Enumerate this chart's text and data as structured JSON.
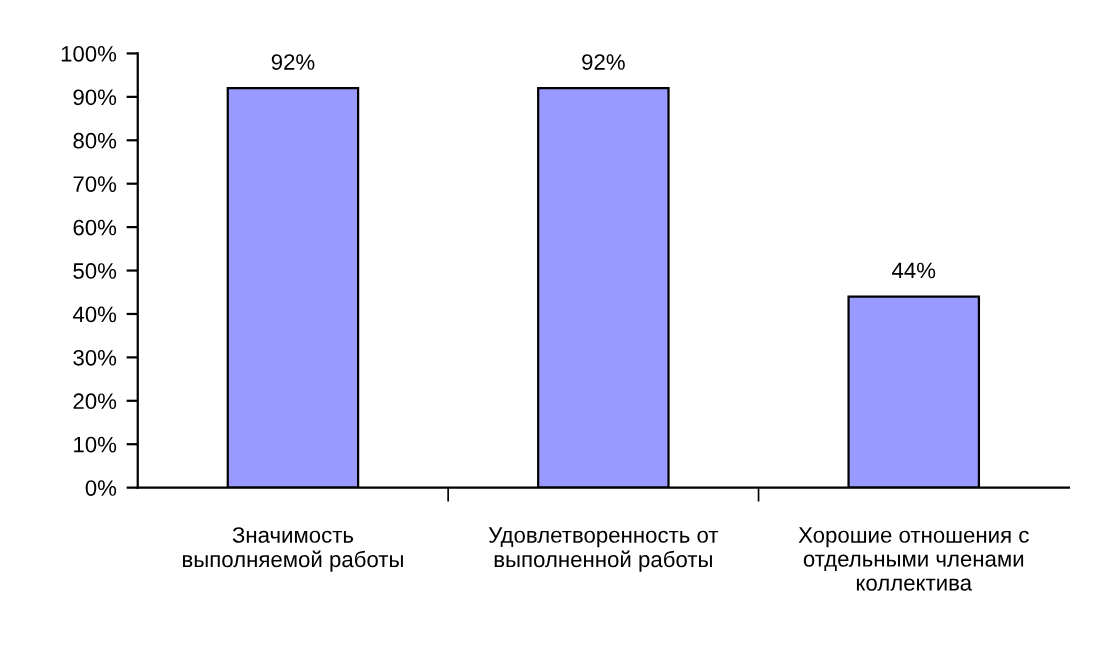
{
  "chart_data": {
    "type": "bar",
    "categories": [
      "Значимость\nвыполняемой работы",
      "Удовлетворенность от\nвыполненной работы",
      "Хорошие отношения с\nотдельными членами\nколлектива"
    ],
    "series": [
      {
        "color": "#9999ff",
        "values": [
          92,
          92,
          44
        ]
      }
    ],
    "value_labels": [
      "92%",
      "92%",
      "44%"
    ],
    "ylim": [
      0,
      100
    ],
    "yticks": [
      {
        "value": 0,
        "label": "0%"
      },
      {
        "value": 10,
        "label": "10%"
      },
      {
        "value": 20,
        "label": "20%"
      },
      {
        "value": 30,
        "label": "30%"
      },
      {
        "value": 40,
        "label": "40%"
      },
      {
        "value": 50,
        "label": "50%"
      },
      {
        "value": 60,
        "label": "60%"
      },
      {
        "value": 70,
        "label": "70%"
      },
      {
        "value": 80,
        "label": "80%"
      },
      {
        "value": 90,
        "label": "90%"
      },
      {
        "value": 100,
        "label": "100%"
      }
    ],
    "grid": false,
    "legend": false
  }
}
